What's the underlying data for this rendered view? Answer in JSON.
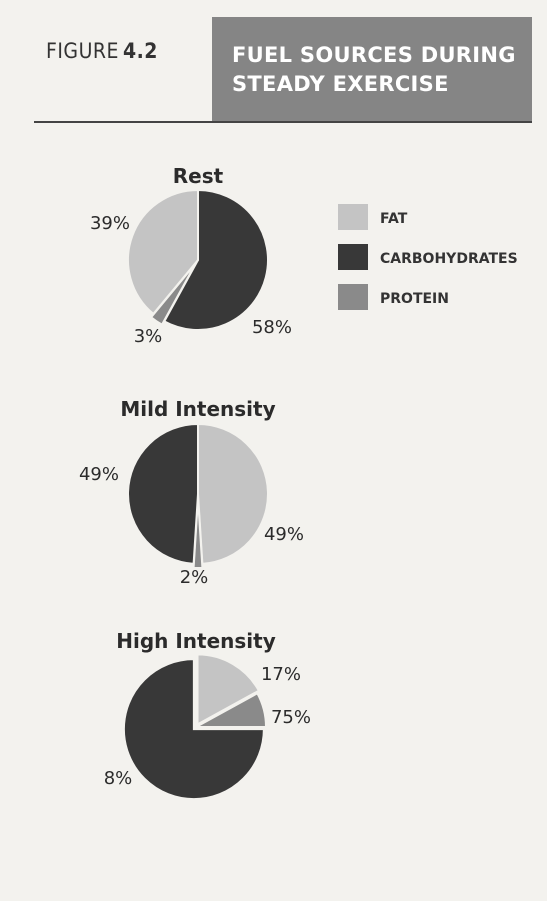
{
  "header": {
    "figure_word": "FIGURE",
    "figure_number": "4.2",
    "title_line1": "FUEL SOURCES DURING",
    "title_line2": "STEADY EXERCISE"
  },
  "legend": [
    {
      "label": "FAT",
      "color": "#c4c4c4"
    },
    {
      "label": "CARBOHYDRATES",
      "color": "#383838"
    },
    {
      "label": "PROTEIN",
      "color": "#8a8a8a"
    }
  ],
  "colors": {
    "fat": "#c4c4c4",
    "carbohydrates": "#383838",
    "protein": "#8a8a8a"
  },
  "chart_data": [
    {
      "type": "pie",
      "title": "Rest",
      "categories": [
        "FAT",
        "CARBOHYDRATES",
        "PROTEIN"
      ],
      "values": [
        39,
        58,
        3
      ],
      "labels": [
        "39%",
        "58%",
        "3%"
      ]
    },
    {
      "type": "pie",
      "title": "Mild Intensity",
      "categories": [
        "FAT",
        "CARBOHYDRATES",
        "PROTEIN"
      ],
      "values": [
        49,
        49,
        2
      ],
      "labels": [
        "49%",
        "49%",
        "2%"
      ]
    },
    {
      "type": "pie",
      "title": "High Intensity",
      "categories": [
        "FAT",
        "CARBOHYDRATES",
        "PROTEIN"
      ],
      "values": [
        17,
        75,
        8
      ],
      "labels": [
        "17%",
        "75%",
        "8%"
      ]
    }
  ]
}
